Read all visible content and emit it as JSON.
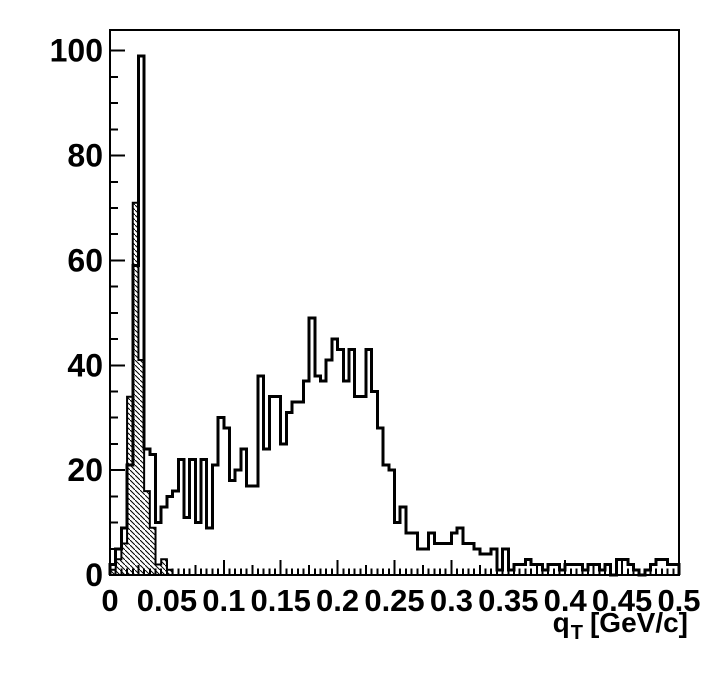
{
  "figure": {
    "background_color": "#ffffff",
    "foreground_color": "#000000"
  },
  "chart_data": {
    "type": "bar",
    "subtype": "step-histogram",
    "title": "",
    "xlabel_parts": {
      "base": "q",
      "subscript": "T",
      "units": "[GeV/c]"
    },
    "ylabel": "",
    "grid": false,
    "legend": null,
    "x_axis": {
      "min": 0,
      "max": 0.5,
      "bin_width": 0.005,
      "major_tick_step": 0.05,
      "medium_tick_step": 0.025,
      "minor_tick_step": 0.005,
      "tick_labels": [
        "0",
        "0.05",
        "0.1",
        "0.15",
        "0.2",
        "0.25",
        "0.3",
        "0.35",
        "0.4",
        "0.45",
        "0.5"
      ]
    },
    "y_axis": {
      "min": 0,
      "max": 103.95,
      "major_tick_step": 20,
      "minor_tick_step": 5,
      "tick_labels": [
        "0",
        "20",
        "40",
        "60",
        "80",
        "100"
      ]
    },
    "series": [
      {
        "name": "hatched_histogram",
        "style": "hatched-fill",
        "line_color": "#000000",
        "fill": "diagonal-hatch",
        "values": [
          1,
          3,
          6,
          34,
          71,
          41,
          16,
          9,
          2,
          3,
          1,
          0,
          0,
          0,
          0,
          0,
          0,
          0,
          0,
          0,
          0,
          0,
          0,
          0,
          0,
          0,
          0,
          0,
          0,
          0,
          0,
          0,
          0,
          0,
          0,
          0,
          0,
          0,
          0,
          0,
          0,
          0,
          0,
          0,
          0,
          0,
          0,
          0,
          0,
          0,
          0,
          0,
          0,
          0,
          0,
          0,
          0,
          0,
          0,
          0,
          0,
          0,
          0,
          0,
          0,
          0,
          0,
          0,
          0,
          0,
          0,
          0,
          0,
          0,
          0,
          0,
          0,
          0,
          0,
          0,
          0,
          0,
          0,
          0,
          0,
          0,
          0,
          0,
          0,
          0,
          0,
          0,
          0,
          0,
          0,
          0,
          0,
          0,
          0,
          0
        ]
      },
      {
        "name": "open_histogram",
        "style": "open-outline",
        "line_color": "#000000",
        "fill": "none",
        "values": [
          2,
          5,
          9,
          21,
          59,
          99,
          24,
          23,
          10,
          13,
          15,
          16,
          22,
          11,
          22,
          10,
          22,
          9,
          21,
          30,
          28,
          18,
          20,
          24,
          17,
          17,
          38,
          24,
          34,
          34,
          25,
          31,
          33,
          33,
          37,
          49,
          38,
          37,
          41,
          45,
          43,
          37,
          43,
          34,
          34,
          43,
          35,
          28,
          21,
          20,
          10,
          13,
          8,
          8,
          5,
          5,
          8,
          6,
          6,
          6,
          8,
          9,
          6,
          6,
          5,
          4,
          4,
          5,
          1,
          5,
          1,
          2,
          2,
          3,
          2,
          2,
          1,
          2,
          2,
          1,
          2,
          2,
          2,
          1,
          2,
          2,
          1,
          2,
          0,
          3,
          3,
          2,
          1,
          0,
          1,
          2,
          3,
          3,
          2,
          2
        ]
      }
    ]
  }
}
